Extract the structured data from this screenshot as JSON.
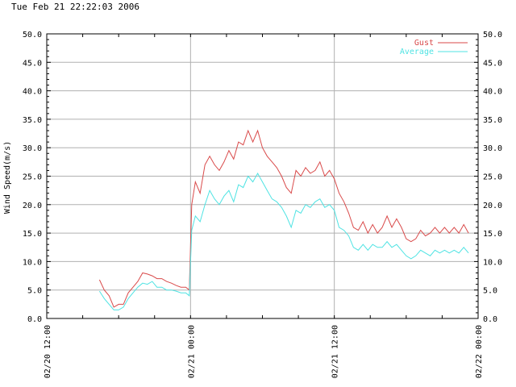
{
  "header": {
    "timestamp": "Tue Feb 21 22:22:03 2006"
  },
  "colors": {
    "gust": "#d94a4a",
    "average": "#4fe3e3",
    "grid": "#b0b0b0",
    "axis": "#000000"
  },
  "chart_data": {
    "type": "line",
    "title": "",
    "ylabel": "Wind Speed(m/s)",
    "xlabel": "",
    "ylim": [
      0,
      50
    ],
    "yticks": [
      "0.0",
      "5.0",
      "10.0",
      "15.0",
      "20.0",
      "25.0",
      "30.0",
      "35.0",
      "40.0",
      "45.0",
      "50.0"
    ],
    "xlim_hours": [
      0,
      36
    ],
    "xticks": [
      {
        "h": 0,
        "label": "02/20 12:00"
      },
      {
        "h": 12,
        "label": "02/21 00:00"
      },
      {
        "h": 24,
        "label": "02/21 12:00"
      },
      {
        "h": 36,
        "label": "02/22 00:00"
      }
    ],
    "grid": true,
    "legend": "top-right",
    "series": [
      {
        "name": "Gust",
        "x": [
          4.4,
          4.8,
          5.2,
          5.6,
          6.0,
          6.4,
          6.8,
          7.2,
          7.6,
          8.0,
          8.4,
          8.8,
          9.2,
          9.6,
          10.0,
          10.4,
          10.8,
          11.2,
          11.6,
          11.9,
          12.1,
          12.4,
          12.8,
          13.2,
          13.6,
          14.0,
          14.4,
          14.8,
          15.2,
          15.6,
          16.0,
          16.4,
          16.8,
          17.2,
          17.6,
          18.0,
          18.4,
          18.8,
          19.2,
          19.6,
          20.0,
          20.4,
          20.8,
          21.2,
          21.6,
          22.0,
          22.4,
          22.8,
          23.2,
          23.6,
          24.0,
          24.4,
          24.8,
          25.2,
          25.6,
          26.0,
          26.4,
          26.8,
          27.2,
          27.6,
          28.0,
          28.4,
          28.8,
          29.2,
          29.6,
          30.0,
          30.4,
          30.8,
          31.2,
          31.6,
          32.0,
          32.4,
          32.8,
          33.2,
          33.6,
          34.0,
          34.4,
          34.8,
          35.2
        ],
        "y": [
          6.8,
          5.0,
          4.0,
          2.0,
          2.5,
          2.5,
          4.5,
          5.5,
          6.5,
          8.0,
          7.8,
          7.5,
          7.0,
          7.0,
          6.5,
          6.2,
          5.8,
          5.5,
          5.5,
          5.0,
          20.0,
          24.0,
          22.0,
          27.0,
          28.5,
          27.0,
          26.0,
          27.5,
          29.5,
          28.0,
          31.0,
          30.5,
          33.0,
          31.0,
          33.0,
          30.0,
          28.5,
          27.5,
          26.5,
          25.0,
          23.0,
          22.0,
          26.0,
          25.0,
          26.5,
          25.5,
          26.0,
          27.5,
          25.0,
          26.0,
          24.5,
          22.0,
          20.5,
          18.5,
          16.0,
          15.5,
          17.0,
          15.0,
          16.5,
          15.0,
          16.0,
          18.0,
          16.0,
          17.5,
          16.0,
          14.0,
          13.5,
          14.0,
          15.5,
          14.5,
          15.0,
          16.0,
          15.0,
          16.0,
          15.0,
          16.0,
          15.0,
          16.5,
          15.0
        ]
      },
      {
        "name": "Average",
        "x": [
          4.4,
          4.8,
          5.2,
          5.6,
          6.0,
          6.4,
          6.8,
          7.2,
          7.6,
          8.0,
          8.4,
          8.8,
          9.2,
          9.6,
          10.0,
          10.4,
          10.8,
          11.2,
          11.6,
          11.9,
          12.1,
          12.4,
          12.8,
          13.2,
          13.6,
          14.0,
          14.4,
          14.8,
          15.2,
          15.6,
          16.0,
          16.4,
          16.8,
          17.2,
          17.6,
          18.0,
          18.4,
          18.8,
          19.2,
          19.6,
          20.0,
          20.4,
          20.8,
          21.2,
          21.6,
          22.0,
          22.4,
          22.8,
          23.2,
          23.6,
          24.0,
          24.4,
          24.8,
          25.2,
          25.6,
          26.0,
          26.4,
          26.8,
          27.2,
          27.6,
          28.0,
          28.4,
          28.8,
          29.2,
          29.6,
          30.0,
          30.4,
          30.8,
          31.2,
          31.6,
          32.0,
          32.4,
          32.8,
          33.2,
          33.6,
          34.0,
          34.4,
          34.8,
          35.2
        ],
        "y": [
          4.8,
          3.5,
          2.5,
          1.5,
          1.5,
          2.0,
          3.5,
          4.5,
          5.5,
          6.2,
          6.0,
          6.5,
          5.5,
          5.5,
          5.0,
          5.0,
          4.8,
          4.5,
          4.5,
          4.0,
          15.5,
          18.0,
          17.0,
          20.0,
          22.5,
          21.0,
          20.0,
          21.5,
          22.5,
          20.5,
          23.5,
          23.0,
          25.0,
          24.0,
          25.5,
          24.0,
          22.5,
          21.0,
          20.5,
          19.5,
          18.0,
          16.0,
          19.0,
          18.5,
          20.0,
          19.5,
          20.5,
          21.0,
          19.5,
          20.0,
          19.0,
          16.0,
          15.5,
          14.5,
          12.5,
          12.0,
          13.0,
          12.0,
          13.0,
          12.5,
          12.5,
          13.5,
          12.5,
          13.0,
          12.0,
          11.0,
          10.5,
          11.0,
          12.0,
          11.5,
          11.0,
          12.0,
          11.5,
          12.0,
          11.5,
          12.0,
          11.5,
          12.5,
          11.5
        ]
      }
    ]
  }
}
